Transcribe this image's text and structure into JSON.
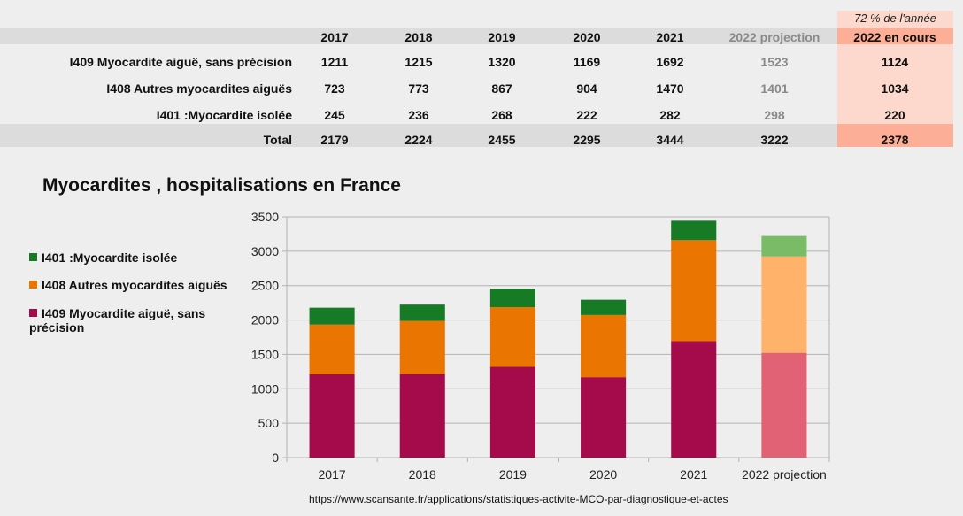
{
  "table": {
    "note_2022": "72 % de l'année",
    "columns": [
      "2017",
      "2018",
      "2019",
      "2020",
      "2021",
      "2022 projection",
      "2022 en cours"
    ],
    "rows": [
      {
        "label": "I409 Myocardite aiguë, sans précision",
        "values": [
          "1211",
          "1215",
          "1320",
          "1169",
          "1692",
          "1523",
          "1124"
        ]
      },
      {
        "label": "I408 Autres myocardites aiguës",
        "values": [
          "723",
          "773",
          "867",
          "904",
          "1470",
          "1401",
          "1034"
        ]
      },
      {
        "label": "I401 :Myocardite isolée",
        "values": [
          "245",
          "236",
          "268",
          "222",
          "282",
          "298",
          "220"
        ]
      }
    ],
    "total": {
      "label": "Total",
      "values": [
        "2179",
        "2224",
        "2455",
        "2295",
        "3444",
        "3222",
        "2378"
      ]
    }
  },
  "chart_data": {
    "type": "bar",
    "stacked": true,
    "title": "Myocardites , hospitalisations en France",
    "xlabel": "",
    "ylabel": "",
    "categories": [
      "2017",
      "2018",
      "2019",
      "2020",
      "2021",
      "2022 projection"
    ],
    "ylim": [
      0,
      3500
    ],
    "yticks": [
      0,
      500,
      1000,
      1500,
      2000,
      2500,
      3000,
      3500
    ],
    "grid": true,
    "legend_position": "left",
    "series": [
      {
        "name": "I409 Myocardite aiguë, sans précision",
        "values": [
          1211,
          1215,
          1320,
          1169,
          1692,
          1523
        ],
        "color": "#a50b4a",
        "projection_color": "#e06274"
      },
      {
        "name": "I408 Autres myocardites aiguës",
        "values": [
          723,
          773,
          867,
          904,
          1470,
          1401
        ],
        "color": "#ea7500",
        "projection_color": "#feb26a"
      },
      {
        "name": "I401 :Myocardite isolée",
        "values": [
          245,
          236,
          268,
          222,
          282,
          298
        ],
        "color": "#177a25",
        "projection_color": "#79bb67"
      }
    ],
    "legend": [
      {
        "label": "I401 :Myocardite isolée",
        "color": "#177a25"
      },
      {
        "label": "I408 Autres myocardites aiguës",
        "color": "#ea7500"
      },
      {
        "label": "I409 Myocardite aiguë, sans précision",
        "color": "#a50b4a"
      }
    ]
  },
  "source": "https://www.scansante.fr/applications/statistiques-activite-MCO-par-diagnostique-et-actes"
}
